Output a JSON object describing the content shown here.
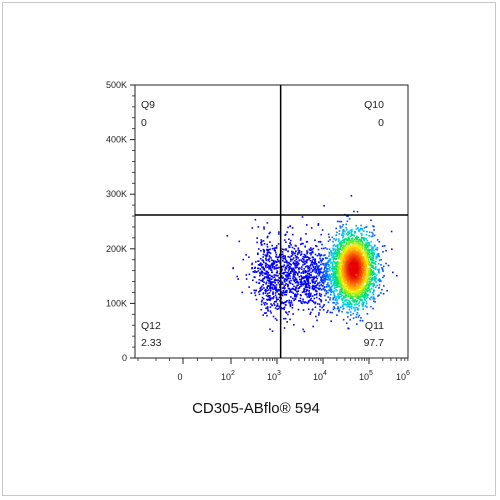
{
  "chart_data": {
    "type": "scatter",
    "xlabel": "CD305-ABflo® 594",
    "ylabel": "",
    "xscale": "biexponential",
    "x_ticks": [
      "0",
      "10",
      "10",
      "10",
      "10",
      "10"
    ],
    "x_tick_exponents": [
      "",
      "2",
      "3",
      "4",
      "5",
      "6"
    ],
    "x_tick_values": [
      0,
      100,
      1000,
      10000,
      100000,
      1000000
    ],
    "y_ticks": [
      "0",
      "100K",
      "200K",
      "300K",
      "400K",
      "500K"
    ],
    "y_tick_values": [
      0,
      100000,
      200000,
      300000,
      400000,
      500000
    ],
    "ylim": [
      0,
      500000
    ],
    "quadrants": [
      {
        "name": "Q9",
        "value": "0",
        "position": "top-left"
      },
      {
        "name": "Q10",
        "value": "0",
        "position": "top-right"
      },
      {
        "name": "Q11",
        "value": "97.7",
        "position": "bottom-right"
      },
      {
        "name": "Q12",
        "value": "2.33",
        "position": "bottom-left"
      }
    ],
    "quadrant_gate": {
      "x": 1200,
      "y": 262000
    },
    "population": {
      "center_x": 45000,
      "center_y": 165000,
      "x_range": [
        150,
        150000
      ],
      "y_range": [
        110000,
        245000
      ],
      "coloring": "density (blue low → red high)"
    }
  },
  "colors": {
    "axis": "#222222",
    "gate_line": "#000000",
    "density_low": "#0000ff",
    "density_mid": "#00ff00",
    "density_high": "#ff0000"
  }
}
